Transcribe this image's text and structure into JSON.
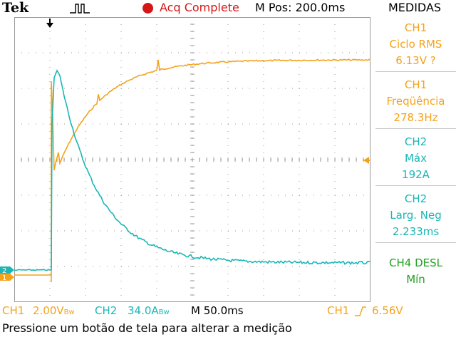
{
  "header": {
    "brand": "Tek",
    "trigger_icon": "trigger-waveform-icon",
    "acq_status": "Acq Complete",
    "m_pos": "M Pos: 200.0ms",
    "panel_title": "MEDIDAS"
  },
  "measurements": [
    {
      "l1": "CH1",
      "l2": "Ciclo RMS",
      "l3": "6.13V ?",
      "color": "#f5a21b"
    },
    {
      "l1": "CH1",
      "l2": "Freqüência",
      "l3": "278.3Hz",
      "color": "#f5a21b"
    },
    {
      "l1": "CH2",
      "l2": "Máx",
      "l3": "192A",
      "color": "#1ab6b6"
    },
    {
      "l1": "CH2",
      "l2": "Larg. Neg",
      "l3": "2.233ms",
      "color": "#1ab6b6"
    },
    {
      "l1": "CH4 DESL",
      "l2": "Mín",
      "color": "#23a023"
    }
  ],
  "footer": {
    "ch1_label": "CH1",
    "ch1_scale": "2.00V",
    "ch2_label": "CH2",
    "ch2_scale": "34.0A",
    "bw_mark": "Bw",
    "timebase": "M 50.0ms",
    "trig_src": "CH1",
    "trig_level": "6.56V",
    "status_text": "Pressione um botão de tela para alterar a medição"
  },
  "markers": {
    "ch1": "1",
    "ch2": "2"
  },
  "colors": {
    "ch1": "#f5a21b",
    "ch2": "#1ab6b6",
    "ch4": "#23a023",
    "acq": "#d41616",
    "grid": "#9a9a9a"
  }
}
